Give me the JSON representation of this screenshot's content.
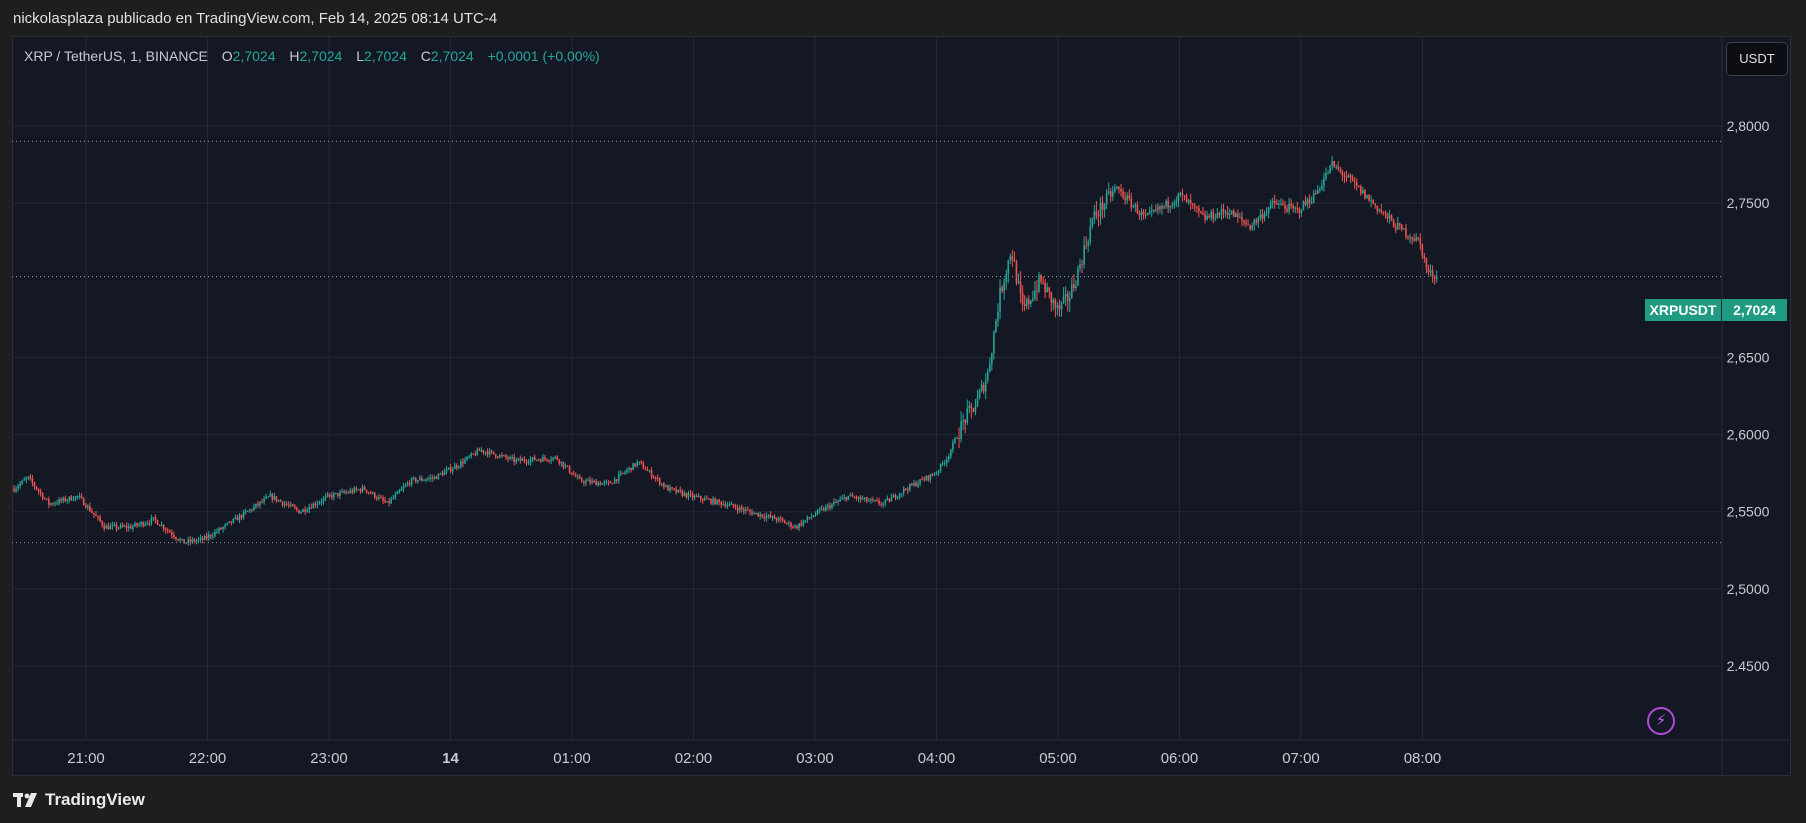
{
  "header": {
    "text": "nickolasplaza publicado en TradingView.com, Feb 14, 2025 08:14 UTC-4"
  },
  "legend": {
    "symbol": "XRP / TetherUS, 1, BINANCE",
    "o_label": "O",
    "o_value": "2,7024",
    "h_label": "H",
    "h_value": "2,7024",
    "l_label": "L",
    "l_value": "2,7024",
    "c_label": "C",
    "c_value": "2,7024",
    "change": "+0,0001 (+0,00%)"
  },
  "currency_button": "USDT",
  "price_tag": {
    "symbol": "XRPUSDT",
    "value": "2,7024"
  },
  "footer": {
    "brand": "TradingView"
  },
  "colors": {
    "up": "#26a69a",
    "down": "#ef5350",
    "background": "#141824",
    "grid": "#232736",
    "tag": "#1e9b82"
  },
  "icons": {
    "alert": "lightning-bolt-icon",
    "logo": "tradingview-logo-icon"
  },
  "chart_data": {
    "type": "candlestick",
    "title": "XRP / TetherUS, 1, BINANCE",
    "ylim": [
      2.44,
      2.83
    ],
    "y_ticks": [
      2.8,
      2.75,
      2.65,
      2.6,
      2.55,
      2.5,
      2.45
    ],
    "y_tick_labels": [
      "2,8000",
      "2,7500",
      "2,6500",
      "2,6000",
      "2,5500",
      "2,5000",
      "2.4500"
    ],
    "x_ticks": [
      {
        "t": 1,
        "label": "21:00"
      },
      {
        "t": 2,
        "label": "22:00"
      },
      {
        "t": 3,
        "label": "23:00"
      },
      {
        "t": 4,
        "label": "14"
      },
      {
        "t": 5,
        "label": "01:00"
      },
      {
        "t": 6,
        "label": "02:00"
      },
      {
        "t": 7,
        "label": "03:00"
      },
      {
        "t": 8,
        "label": "04:00"
      },
      {
        "t": 9,
        "label": "05:00"
      },
      {
        "t": 10,
        "label": "06:00"
      },
      {
        "t": 11,
        "label": "07:00"
      },
      {
        "t": 12,
        "label": "08:00"
      }
    ],
    "reference_lines": [
      2.79,
      2.7024,
      2.53
    ],
    "last_price": 2.7024,
    "price_path": [
      [
        0.0,
        2.565
      ],
      [
        0.12,
        2.572
      ],
      [
        0.3,
        2.555
      ],
      [
        0.55,
        2.56
      ],
      [
        0.78,
        2.54
      ],
      [
        1.0,
        2.54
      ],
      [
        1.2,
        2.545
      ],
      [
        1.45,
        2.53
      ],
      [
        1.62,
        2.532
      ],
      [
        1.8,
        2.54
      ],
      [
        2.0,
        2.55
      ],
      [
        2.2,
        2.56
      ],
      [
        2.45,
        2.55
      ],
      [
        2.7,
        2.56
      ],
      [
        3.0,
        2.565
      ],
      [
        3.2,
        2.555
      ],
      [
        3.4,
        2.57
      ],
      [
        3.6,
        2.572
      ],
      [
        3.8,
        2.58
      ],
      [
        4.0,
        2.59
      ],
      [
        4.3,
        2.583
      ],
      [
        4.65,
        2.585
      ],
      [
        4.85,
        2.57
      ],
      [
        5.1,
        2.568
      ],
      [
        5.35,
        2.582
      ],
      [
        5.6,
        2.565
      ],
      [
        5.8,
        2.56
      ],
      [
        6.1,
        2.555
      ],
      [
        6.3,
        2.55
      ],
      [
        6.55,
        2.545
      ],
      [
        6.7,
        2.54
      ],
      [
        6.9,
        2.55
      ],
      [
        7.15,
        2.56
      ],
      [
        7.45,
        2.555
      ],
      [
        7.65,
        2.565
      ],
      [
        7.9,
        2.575
      ],
      [
        8.0,
        2.585
      ],
      [
        8.15,
        2.61
      ],
      [
        8.25,
        2.62
      ],
      [
        8.35,
        2.64
      ],
      [
        8.45,
        2.69
      ],
      [
        8.55,
        2.72
      ],
      [
        8.65,
        2.68
      ],
      [
        8.8,
        2.7
      ],
      [
        8.95,
        2.68
      ],
      [
        9.05,
        2.69
      ],
      [
        9.12,
        2.705
      ],
      [
        9.25,
        2.74
      ],
      [
        9.45,
        2.76
      ],
      [
        9.7,
        2.74
      ],
      [
        9.9,
        2.75
      ],
      [
        10.0,
        2.755
      ],
      [
        10.2,
        2.74
      ],
      [
        10.4,
        2.745
      ],
      [
        10.6,
        2.735
      ],
      [
        10.8,
        2.75
      ],
      [
        11.0,
        2.745
      ],
      [
        11.15,
        2.755
      ],
      [
        11.3,
        2.775
      ],
      [
        11.45,
        2.765
      ],
      [
        11.65,
        2.75
      ],
      [
        11.85,
        2.735
      ],
      [
        12.05,
        2.725
      ],
      [
        12.12,
        2.705
      ],
      [
        12.2,
        2.7024
      ]
    ],
    "x_range": [
      -0.52,
      12.2
    ]
  }
}
